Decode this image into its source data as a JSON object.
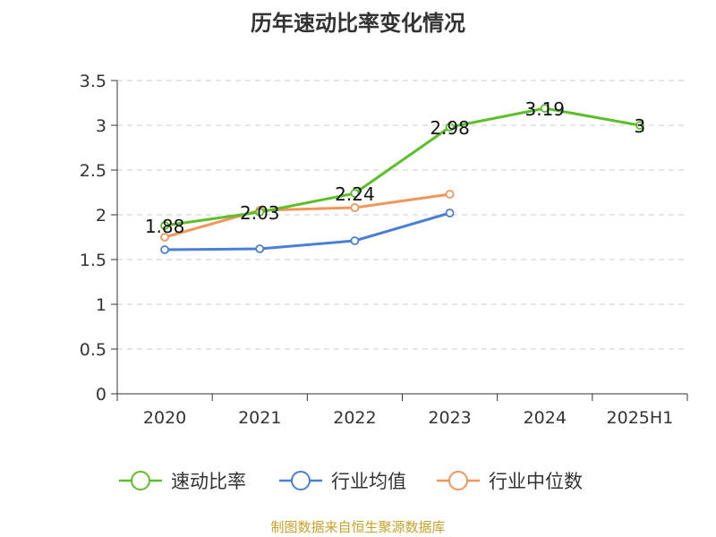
{
  "chart_data": {
    "type": "line",
    "title": "历年速动比率变化情况",
    "categories": [
      "2020",
      "2021",
      "2022",
      "2023",
      "2024",
      "2025H1"
    ],
    "ylim": [
      0,
      3.5
    ],
    "y_ticks": [
      "0",
      "0.5",
      "1",
      "1.5",
      "2",
      "2.5",
      "3",
      "3.5"
    ],
    "grid": true,
    "legend_position": "bottom",
    "series": [
      {
        "name": "速动比率",
        "color": "#5cbf2a",
        "values": [
          1.88,
          2.03,
          2.24,
          2.98,
          3.19,
          3.0
        ],
        "labels": [
          "1.88",
          "2.03",
          "2.24",
          "2.98",
          "3.19",
          "3"
        ]
      },
      {
        "name": "行业均值",
        "color": "#4a7fd6",
        "values": [
          1.61,
          1.62,
          1.71,
          2.02,
          null,
          null
        ]
      },
      {
        "name": "行业中位数",
        "color": "#f0965a",
        "values": [
          1.75,
          2.05,
          2.08,
          2.23,
          null,
          null
        ]
      }
    ]
  },
  "source": "制图数据来自恒生聚源数据库"
}
